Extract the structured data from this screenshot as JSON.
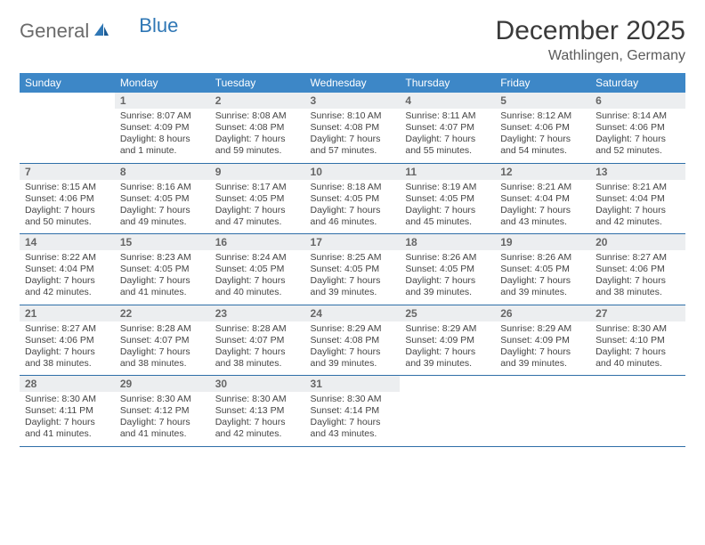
{
  "logo": {
    "part1": "General",
    "part2": "Blue"
  },
  "title": "December 2025",
  "location": "Wathlingen, Germany",
  "colors": {
    "header_bg": "#3d87c7",
    "header_text": "#ffffff",
    "daynum_bg": "#eceef0",
    "daynum_text": "#666666",
    "row_border": "#2f6fa8",
    "body_text": "#444444",
    "logo_gray": "#6b6b6b",
    "logo_blue": "#2f77b5"
  },
  "day_headers": [
    "Sunday",
    "Monday",
    "Tuesday",
    "Wednesday",
    "Thursday",
    "Friday",
    "Saturday"
  ],
  "weeks": [
    [
      {
        "n": "",
        "sr": "",
        "ss": "",
        "d1": "",
        "d2": ""
      },
      {
        "n": "1",
        "sr": "Sunrise: 8:07 AM",
        "ss": "Sunset: 4:09 PM",
        "d1": "Daylight: 8 hours",
        "d2": "and 1 minute."
      },
      {
        "n": "2",
        "sr": "Sunrise: 8:08 AM",
        "ss": "Sunset: 4:08 PM",
        "d1": "Daylight: 7 hours",
        "d2": "and 59 minutes."
      },
      {
        "n": "3",
        "sr": "Sunrise: 8:10 AM",
        "ss": "Sunset: 4:08 PM",
        "d1": "Daylight: 7 hours",
        "d2": "and 57 minutes."
      },
      {
        "n": "4",
        "sr": "Sunrise: 8:11 AM",
        "ss": "Sunset: 4:07 PM",
        "d1": "Daylight: 7 hours",
        "d2": "and 55 minutes."
      },
      {
        "n": "5",
        "sr": "Sunrise: 8:12 AM",
        "ss": "Sunset: 4:06 PM",
        "d1": "Daylight: 7 hours",
        "d2": "and 54 minutes."
      },
      {
        "n": "6",
        "sr": "Sunrise: 8:14 AM",
        "ss": "Sunset: 4:06 PM",
        "d1": "Daylight: 7 hours",
        "d2": "and 52 minutes."
      }
    ],
    [
      {
        "n": "7",
        "sr": "Sunrise: 8:15 AM",
        "ss": "Sunset: 4:06 PM",
        "d1": "Daylight: 7 hours",
        "d2": "and 50 minutes."
      },
      {
        "n": "8",
        "sr": "Sunrise: 8:16 AM",
        "ss": "Sunset: 4:05 PM",
        "d1": "Daylight: 7 hours",
        "d2": "and 49 minutes."
      },
      {
        "n": "9",
        "sr": "Sunrise: 8:17 AM",
        "ss": "Sunset: 4:05 PM",
        "d1": "Daylight: 7 hours",
        "d2": "and 47 minutes."
      },
      {
        "n": "10",
        "sr": "Sunrise: 8:18 AM",
        "ss": "Sunset: 4:05 PM",
        "d1": "Daylight: 7 hours",
        "d2": "and 46 minutes."
      },
      {
        "n": "11",
        "sr": "Sunrise: 8:19 AM",
        "ss": "Sunset: 4:05 PM",
        "d1": "Daylight: 7 hours",
        "d2": "and 45 minutes."
      },
      {
        "n": "12",
        "sr": "Sunrise: 8:21 AM",
        "ss": "Sunset: 4:04 PM",
        "d1": "Daylight: 7 hours",
        "d2": "and 43 minutes."
      },
      {
        "n": "13",
        "sr": "Sunrise: 8:21 AM",
        "ss": "Sunset: 4:04 PM",
        "d1": "Daylight: 7 hours",
        "d2": "and 42 minutes."
      }
    ],
    [
      {
        "n": "14",
        "sr": "Sunrise: 8:22 AM",
        "ss": "Sunset: 4:04 PM",
        "d1": "Daylight: 7 hours",
        "d2": "and 42 minutes."
      },
      {
        "n": "15",
        "sr": "Sunrise: 8:23 AM",
        "ss": "Sunset: 4:05 PM",
        "d1": "Daylight: 7 hours",
        "d2": "and 41 minutes."
      },
      {
        "n": "16",
        "sr": "Sunrise: 8:24 AM",
        "ss": "Sunset: 4:05 PM",
        "d1": "Daylight: 7 hours",
        "d2": "and 40 minutes."
      },
      {
        "n": "17",
        "sr": "Sunrise: 8:25 AM",
        "ss": "Sunset: 4:05 PM",
        "d1": "Daylight: 7 hours",
        "d2": "and 39 minutes."
      },
      {
        "n": "18",
        "sr": "Sunrise: 8:26 AM",
        "ss": "Sunset: 4:05 PM",
        "d1": "Daylight: 7 hours",
        "d2": "and 39 minutes."
      },
      {
        "n": "19",
        "sr": "Sunrise: 8:26 AM",
        "ss": "Sunset: 4:05 PM",
        "d1": "Daylight: 7 hours",
        "d2": "and 39 minutes."
      },
      {
        "n": "20",
        "sr": "Sunrise: 8:27 AM",
        "ss": "Sunset: 4:06 PM",
        "d1": "Daylight: 7 hours",
        "d2": "and 38 minutes."
      }
    ],
    [
      {
        "n": "21",
        "sr": "Sunrise: 8:27 AM",
        "ss": "Sunset: 4:06 PM",
        "d1": "Daylight: 7 hours",
        "d2": "and 38 minutes."
      },
      {
        "n": "22",
        "sr": "Sunrise: 8:28 AM",
        "ss": "Sunset: 4:07 PM",
        "d1": "Daylight: 7 hours",
        "d2": "and 38 minutes."
      },
      {
        "n": "23",
        "sr": "Sunrise: 8:28 AM",
        "ss": "Sunset: 4:07 PM",
        "d1": "Daylight: 7 hours",
        "d2": "and 38 minutes."
      },
      {
        "n": "24",
        "sr": "Sunrise: 8:29 AM",
        "ss": "Sunset: 4:08 PM",
        "d1": "Daylight: 7 hours",
        "d2": "and 39 minutes."
      },
      {
        "n": "25",
        "sr": "Sunrise: 8:29 AM",
        "ss": "Sunset: 4:09 PM",
        "d1": "Daylight: 7 hours",
        "d2": "and 39 minutes."
      },
      {
        "n": "26",
        "sr": "Sunrise: 8:29 AM",
        "ss": "Sunset: 4:09 PM",
        "d1": "Daylight: 7 hours",
        "d2": "and 39 minutes."
      },
      {
        "n": "27",
        "sr": "Sunrise: 8:30 AM",
        "ss": "Sunset: 4:10 PM",
        "d1": "Daylight: 7 hours",
        "d2": "and 40 minutes."
      }
    ],
    [
      {
        "n": "28",
        "sr": "Sunrise: 8:30 AM",
        "ss": "Sunset: 4:11 PM",
        "d1": "Daylight: 7 hours",
        "d2": "and 41 minutes."
      },
      {
        "n": "29",
        "sr": "Sunrise: 8:30 AM",
        "ss": "Sunset: 4:12 PM",
        "d1": "Daylight: 7 hours",
        "d2": "and 41 minutes."
      },
      {
        "n": "30",
        "sr": "Sunrise: 8:30 AM",
        "ss": "Sunset: 4:13 PM",
        "d1": "Daylight: 7 hours",
        "d2": "and 42 minutes."
      },
      {
        "n": "31",
        "sr": "Sunrise: 8:30 AM",
        "ss": "Sunset: 4:14 PM",
        "d1": "Daylight: 7 hours",
        "d2": "and 43 minutes."
      },
      {
        "n": "",
        "sr": "",
        "ss": "",
        "d1": "",
        "d2": ""
      },
      {
        "n": "",
        "sr": "",
        "ss": "",
        "d1": "",
        "d2": ""
      },
      {
        "n": "",
        "sr": "",
        "ss": "",
        "d1": "",
        "d2": ""
      }
    ]
  ]
}
